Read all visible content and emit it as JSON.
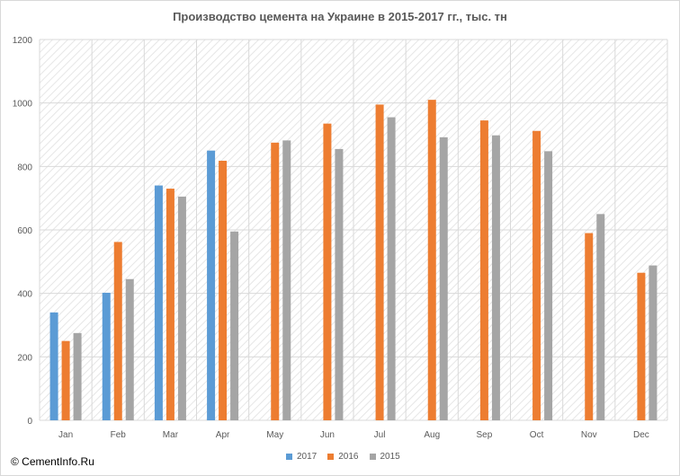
{
  "chart_data": {
    "type": "bar",
    "title": "Производство цемента на Украине в 2015-2017 гг., тыс. тн",
    "xlabel": "",
    "ylabel": "",
    "categories": [
      "Jan",
      "Feb",
      "Mar",
      "Apr",
      "May",
      "Jun",
      "Jul",
      "Aug",
      "Sep",
      "Oct",
      "Nov",
      "Dec"
    ],
    "ylim": [
      0,
      1200
    ],
    "yticks": [
      0,
      200,
      400,
      600,
      800,
      1000,
      1200
    ],
    "grid": true,
    "legend_position": "bottom",
    "series": [
      {
        "name": "2017",
        "color": "#5b9bd5",
        "values": [
          340,
          402,
          740,
          850,
          null,
          null,
          null,
          null,
          null,
          null,
          null,
          null
        ]
      },
      {
        "name": "2016",
        "color": "#ed7d31",
        "values": [
          250,
          562,
          730,
          818,
          875,
          935,
          995,
          1010,
          945,
          912,
          590,
          465
        ]
      },
      {
        "name": "2015",
        "color": "#a5a5a5",
        "values": [
          275,
          445,
          705,
          595,
          882,
          855,
          955,
          892,
          898,
          848,
          650,
          488
        ]
      }
    ]
  },
  "footer": {
    "watermark": "© CementInfo.Ru"
  }
}
